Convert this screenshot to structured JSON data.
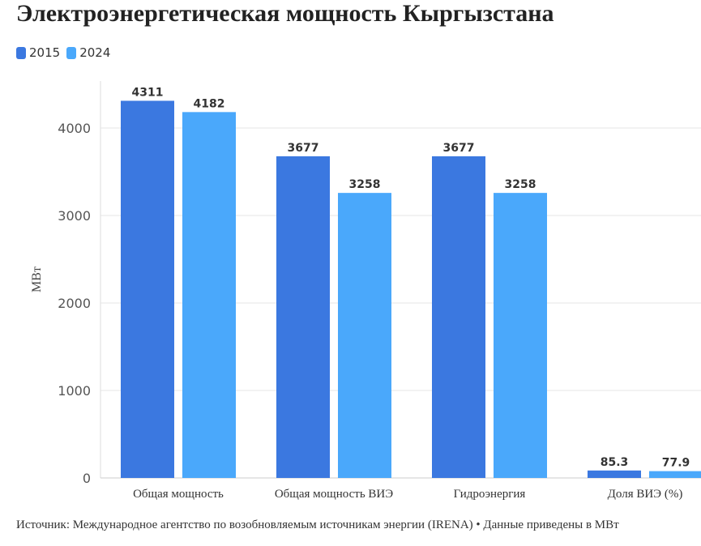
{
  "title": "Электроэнергетическая мощность Кыргызстана",
  "source": "Источник: Международное агентство по возобновляемым источникам энергии (IRENA) • Данные приведены в МВт",
  "colors": {
    "2015": "#3b78e0",
    "2024": "#4aa8fb"
  },
  "chart_data": {
    "type": "bar",
    "title": "Электроэнергетическая мощность Кыргызстана",
    "categories": [
      "Общая мощность",
      "Общая мощность ВИЭ",
      "Гидроэнергия",
      "Доля ВИЭ (%)"
    ],
    "series": [
      {
        "name": "2015",
        "values": [
          4311,
          3677,
          3677,
          85.3
        ],
        "labels": [
          "4311",
          "3677",
          "3677",
          "85.3"
        ]
      },
      {
        "name": "2024",
        "values": [
          4182,
          3258,
          3258,
          77.9
        ],
        "labels": [
          "4182",
          "3258",
          "3258",
          "77.9"
        ]
      }
    ],
    "ylabel": "МВт",
    "xlabel": "",
    "ylim": [
      0,
      4400
    ],
    "yticks": [
      "0",
      "1000",
      "2000",
      "3000",
      "4000"
    ],
    "grid": true,
    "legend": "top-left"
  }
}
